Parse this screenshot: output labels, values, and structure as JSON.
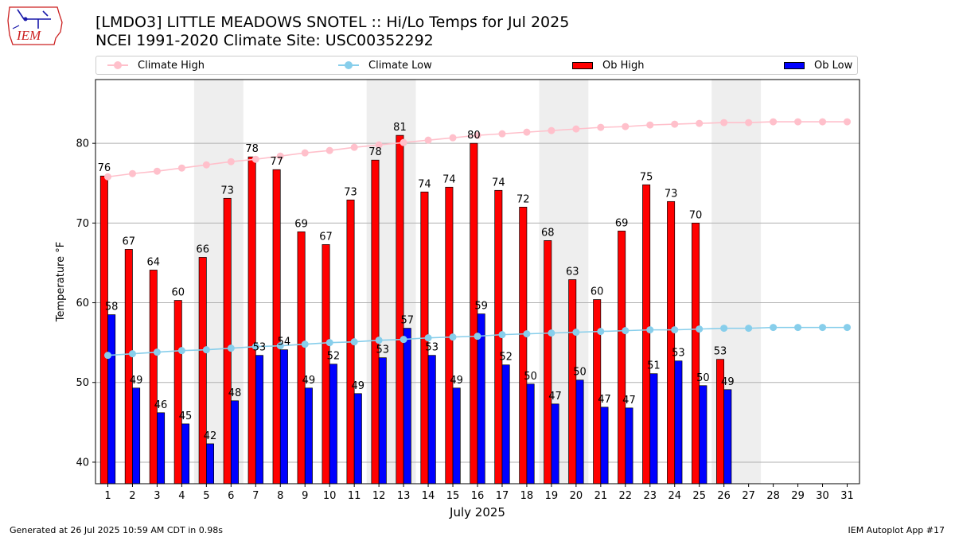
{
  "logo": {
    "text": "IEM"
  },
  "header": {
    "title_line1": "[LMDO3] LITTLE MEADOWS SNOTEL :: Hi/Lo Temps for Jul 2025",
    "title_line2": "NCEI 1991-2020 Climate Site: USC00352292"
  },
  "legend": {
    "items": [
      {
        "label": "Climate High",
        "kind": "line",
        "color": "#ffc0cb"
      },
      {
        "label": "Climate Low",
        "kind": "line",
        "color": "#87ceeb"
      },
      {
        "label": "Ob High",
        "kind": "bar",
        "color": "#ff0000"
      },
      {
        "label": "Ob Low",
        "kind": "bar",
        "color": "#0000ff"
      }
    ]
  },
  "footer": {
    "left": "Generated at 26 Jul 2025 10:59 AM CDT in 0.98s",
    "right": "IEM Autoplot App #17"
  },
  "chart_data": {
    "type": "bar",
    "xlabel": "July 2025",
    "ylabel": "Temperature °F",
    "ylim": [
      37.3,
      88
    ],
    "yticks": [
      40,
      50,
      60,
      70,
      80
    ],
    "grid": "horizontal",
    "categories": [
      "1",
      "2",
      "3",
      "4",
      "5",
      "6",
      "7",
      "8",
      "9",
      "10",
      "11",
      "12",
      "13",
      "14",
      "15",
      "16",
      "17",
      "18",
      "19",
      "20",
      "21",
      "22",
      "23",
      "24",
      "25",
      "26",
      "27",
      "28",
      "29",
      "30",
      "31"
    ],
    "weekend_shading_days": [
      [
        5,
        6
      ],
      [
        12,
        13
      ],
      [
        19,
        20
      ],
      [
        26,
        27
      ]
    ],
    "series": [
      {
        "name": "Ob High",
        "kind": "bar",
        "color": "#ff0000",
        "values": [
          75.9,
          66.7,
          64.1,
          60.3,
          65.7,
          73.1,
          78.3,
          76.7,
          68.9,
          67.3,
          72.9,
          77.9,
          81.0,
          73.9,
          74.5,
          80.0,
          74.1,
          72.0,
          67.8,
          62.9,
          60.4,
          69.0,
          74.8,
          72.7,
          70.0,
          52.9,
          null,
          null,
          null,
          null,
          null
        ],
        "labels": [
          "76",
          "67",
          "64",
          "60",
          "66",
          "73",
          "78",
          "77",
          "69",
          "67",
          "73",
          "78",
          "81",
          "74",
          "74",
          "80",
          "74",
          "72",
          "68",
          "63",
          "60",
          "69",
          "75",
          "73",
          "70",
          "53",
          "",
          "",
          "",
          "",
          ""
        ]
      },
      {
        "name": "Ob Low",
        "kind": "bar",
        "color": "#0000ff",
        "values": [
          58.5,
          49.3,
          46.2,
          44.8,
          42.3,
          47.7,
          53.4,
          54.1,
          49.3,
          52.3,
          48.6,
          53.1,
          56.8,
          53.4,
          49.3,
          58.6,
          52.2,
          49.8,
          47.3,
          50.3,
          46.9,
          46.8,
          51.1,
          52.7,
          49.6,
          49.1,
          null,
          null,
          null,
          null,
          null
        ],
        "labels": [
          "58",
          "49",
          "46",
          "45",
          "42",
          "48",
          "53",
          "54",
          "49",
          "52",
          "49",
          "53",
          "57",
          "53",
          "49",
          "59",
          "52",
          "50",
          "47",
          "50",
          "47",
          "47",
          "51",
          "53",
          "50",
          "49",
          "",
          "",
          "",
          "",
          ""
        ]
      },
      {
        "name": "Climate High",
        "kind": "line",
        "color": "#ffc0cb",
        "values": [
          75.8,
          76.2,
          76.5,
          76.9,
          77.3,
          77.7,
          78.0,
          78.4,
          78.8,
          79.1,
          79.5,
          79.8,
          80.1,
          80.4,
          80.7,
          81.0,
          81.2,
          81.4,
          81.6,
          81.8,
          82.0,
          82.1,
          82.3,
          82.4,
          82.5,
          82.6,
          82.6,
          82.7,
          82.7,
          82.7,
          82.7
        ]
      },
      {
        "name": "Climate Low",
        "kind": "line",
        "color": "#87ceeb",
        "values": [
          53.4,
          53.6,
          53.8,
          54.0,
          54.1,
          54.3,
          54.5,
          54.6,
          54.8,
          55.0,
          55.1,
          55.3,
          55.4,
          55.6,
          55.7,
          55.8,
          56.0,
          56.1,
          56.2,
          56.3,
          56.4,
          56.5,
          56.6,
          56.6,
          56.7,
          56.8,
          56.8,
          56.9,
          56.9,
          56.9,
          56.9
        ]
      }
    ]
  }
}
